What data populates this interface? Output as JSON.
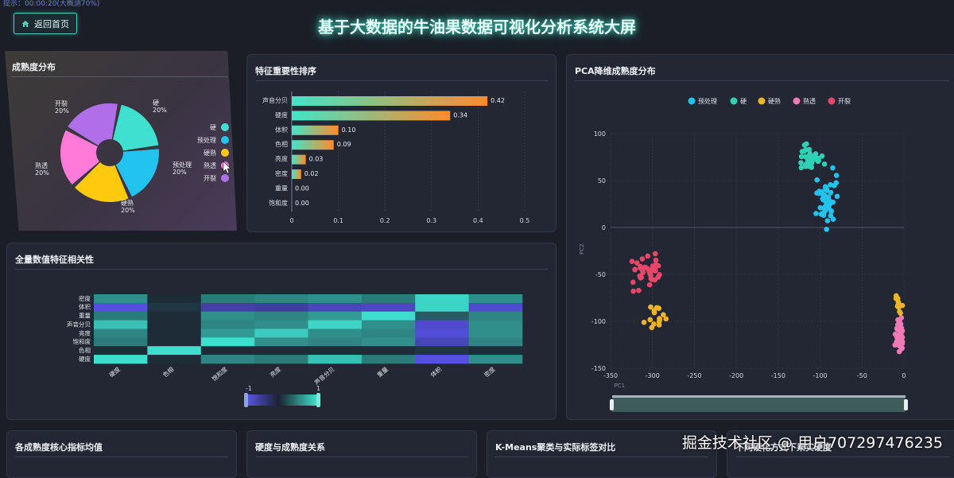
{
  "header": {
    "status_text": "提示：00:00:20(大概测70%)",
    "back_label": "返回首页",
    "title": "基于大数据的牛油果数据可视化分析系统大屏"
  },
  "panels": {
    "ripeness": "成熟度分布",
    "importance": "特征重要性排序",
    "pca": "PCA降维成熟度分布",
    "correlation": "全量数值特征相关性",
    "bottom1": "各成熟度核心指标均值",
    "bottom2": "硬度与成熟度关系",
    "bottom3": "K-Means聚类与实际标签对比",
    "bottom4": "不同硬化方式下果实硬度"
  },
  "colors": {
    "accent": "#3fe0c8",
    "hard": "#40e0d0",
    "preproc": "#22c3ee",
    "firm_ripe": "#ffc90e",
    "ripe": "#ff7ad9",
    "cracked": "#b06ee8",
    "pca_crack": "#e8476a"
  },
  "pie": {
    "slices": [
      {
        "name": "硬",
        "label": "硬\n20%",
        "value": 20,
        "color": "#40e0d0"
      },
      {
        "name": "预处理",
        "label": "预处理\n20%",
        "value": 20,
        "color": "#22c3ee"
      },
      {
        "name": "硬熟",
        "label": "硬熟\n20%",
        "value": 20,
        "color": "#ffc90e"
      },
      {
        "name": "熟透",
        "label": "熟透\n20%",
        "value": 20,
        "color": "#ff7ad9"
      },
      {
        "name": "开裂",
        "label": "开裂\n20%",
        "value": 20,
        "color": "#b06ee8"
      }
    ],
    "legend": [
      {
        "name": "硬",
        "color": "#40e0d0"
      },
      {
        "name": "预处理",
        "color": "#22c3ee"
      },
      {
        "name": "硬熟",
        "color": "#ffc90e"
      },
      {
        "name": "熟透",
        "color": "#ff7ad9"
      },
      {
        "name": "开裂",
        "color": "#b06ee8"
      }
    ]
  },
  "chart_data": [
    {
      "type": "bar",
      "orientation": "horizontal",
      "title": "特征重要性排序",
      "categories": [
        "声音分贝",
        "硬度",
        "体积",
        "色相",
        "亮度",
        "密度",
        "重量",
        "饱和度"
      ],
      "values": [
        0.42,
        0.34,
        0.1,
        0.09,
        0.03,
        0.02,
        0.0,
        0.0
      ],
      "value_labels": [
        "0.42",
        "0.34",
        "0.10",
        "0.09",
        "0.03",
        "0.02",
        "0.00",
        "0.00"
      ],
      "xlim": [
        0,
        0.5
      ],
      "xticks": [
        "0",
        "0.1",
        "0.2",
        "0.3",
        "0.4",
        "0.5"
      ]
    },
    {
      "type": "scatter",
      "title": "PCA降维成熟度分布",
      "xlabel": "PC1",
      "ylabel": "PC2",
      "xlim": [
        -350,
        0
      ],
      "ylim": [
        -150,
        100
      ],
      "xticks": [
        "-350",
        "-300",
        "-250",
        "-200",
        "-150",
        "-100",
        "-50",
        "0"
      ],
      "yticks": [
        "100",
        "50",
        "0",
        "-50",
        "-100",
        "-150"
      ],
      "legend_placement": "top",
      "series": [
        {
          "name": "预处理",
          "color": "#22c3ee",
          "center": [
            -90,
            30
          ],
          "spread": [
            12,
            25
          ],
          "count": 45
        },
        {
          "name": "硬",
          "color": "#2fd0b5",
          "center": [
            -110,
            75
          ],
          "spread": [
            12,
            12
          ],
          "count": 40
        },
        {
          "name": "硬熟",
          "color": "#f0b323",
          "center": [
            -295,
            -95
          ],
          "spread": [
            15,
            10
          ],
          "count": 16
        },
        {
          "name": "熟透",
          "color": "#f07ab8",
          "center": [
            -5,
            -115
          ],
          "spread": [
            5,
            15
          ],
          "count": 40
        },
        {
          "name": "开裂",
          "color": "#e8476a",
          "center": [
            -305,
            -50
          ],
          "spread": [
            15,
            18
          ],
          "count": 40
        }
      ],
      "extra_series_points": {
        "硬熟_right": {
          "center": [
            -5,
            -80
          ],
          "spread": [
            4,
            10
          ],
          "count": 14
        }
      }
    },
    {
      "type": "heatmap",
      "title": "全量数值特征相关性",
      "rows": [
        "密度",
        "体积",
        "重量",
        "声音分贝",
        "亮度",
        "饱和度",
        "色相",
        "硬度"
      ],
      "cols": [
        "硬度",
        "色相",
        "饱和度",
        "亮度",
        "声音分贝",
        "重量",
        "体积",
        "密度"
      ],
      "values": [
        [
          0.55,
          0.05,
          0.45,
          0.5,
          0.55,
          0.45,
          0.9,
          0.55
        ],
        [
          -0.95,
          0.1,
          -0.65,
          -0.6,
          -0.75,
          -0.8,
          0.9,
          -0.85
        ],
        [
          0.45,
          0.05,
          0.55,
          0.5,
          0.6,
          0.95,
          0.3,
          0.5
        ],
        [
          0.8,
          0.05,
          0.5,
          0.55,
          0.9,
          0.55,
          -0.85,
          0.55
        ],
        [
          0.5,
          0.05,
          0.6,
          0.85,
          0.55,
          0.5,
          -0.9,
          0.55
        ],
        [
          0.45,
          0.05,
          0.95,
          0.55,
          0.5,
          0.55,
          -0.75,
          0.5
        ],
        [
          0.05,
          0.95,
          0.05,
          0.05,
          0.05,
          0.05,
          0.1,
          0.05
        ],
        [
          0.95,
          0.05,
          0.5,
          0.45,
          0.8,
          0.45,
          -0.95,
          0.55
        ]
      ],
      "visual_map": {
        "min": "-1",
        "max": "1"
      }
    }
  ],
  "watermark": "掘金技术社区 @ 用户707297476235"
}
